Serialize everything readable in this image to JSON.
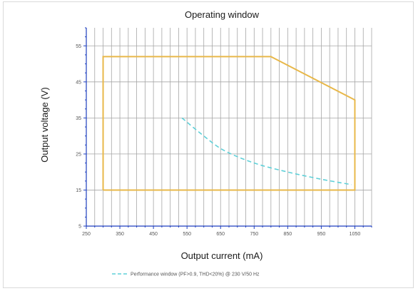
{
  "chart_data": {
    "type": "line",
    "title": "Operating window",
    "xlabel": "Output current (mA)",
    "ylabel": "Output voltage (V)",
    "xlim": [
      250,
      1100
    ],
    "ylim": [
      5,
      60
    ],
    "x_ticks": [
      250,
      350,
      450,
      550,
      650,
      750,
      850,
      950,
      1050
    ],
    "y_ticks": [
      5,
      15,
      25,
      35,
      45,
      55
    ],
    "grid": true,
    "legend_position": "bottom",
    "series": [
      {
        "name": "",
        "style": "solid",
        "color": "#e8b84a",
        "x": [
          300,
          300,
          800,
          1050,
          1050,
          300
        ],
        "y": [
          15,
          52,
          52,
          40,
          15,
          15
        ]
      },
      {
        "name": "Performance window (PF>0.9, THD<20%) @ 230 V/50 Hz",
        "style": "dashed",
        "color": "#5fd0d8",
        "x": [
          535,
          600,
          660,
          750,
          850,
          950,
          1040
        ],
        "y": [
          35,
          30,
          26,
          22.5,
          20,
          18,
          16.5
        ]
      }
    ]
  }
}
